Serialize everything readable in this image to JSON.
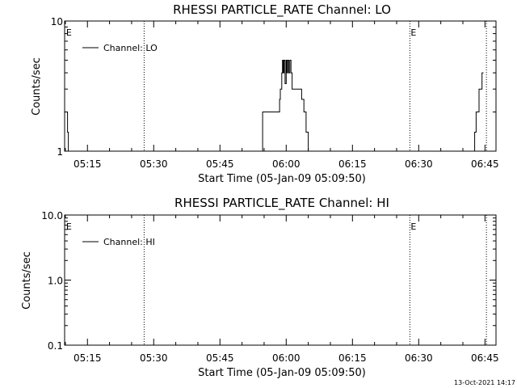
{
  "footer": {
    "timestamp": "13-Oct-2021 14:17"
  },
  "chart_data": [
    {
      "type": "line",
      "title": "RHESSI PARTICLE_RATE Channel: LO",
      "xlabel": "Start Time (05-Jan-09 05:09:50)",
      "ylabel": "Counts/sec",
      "yscale": "log",
      "ylim": [
        1,
        10
      ],
      "yticks": [
        1,
        10
      ],
      "ytick_labels": [
        "1",
        "10"
      ],
      "xlim": [
        "05:09:50",
        "06:47:30"
      ],
      "xticks": [
        "05:15",
        "05:30",
        "05:45",
        "06:00",
        "06:15",
        "06:30",
        "06:45"
      ],
      "xtick_labels": [
        "05:15",
        "05:30",
        "05:45",
        "06:00",
        "06:15",
        "06:30",
        "06:45"
      ],
      "legend": {
        "position": "top-left",
        "entries": [
          "Channel: LO"
        ]
      },
      "vlines": [
        "05:27:50",
        "06:28:00",
        "06:45:20"
      ],
      "flags": [
        {
          "text": "E",
          "time": "05:10:00"
        },
        {
          "text": "E",
          "time": "06:28:00"
        }
      ],
      "series": [
        {
          "name": "Channel: LO",
          "x": [
            "05:09:50",
            "05:10:20",
            "05:10:30",
            "05:10:40",
            "05:11:10",
            "05:54:30",
            "05:54:40",
            "05:55:00",
            "05:55:40",
            "05:55:50",
            "05:58:20",
            "05:58:30",
            "05:58:40",
            "05:59:00",
            "05:59:10",
            "05:59:20",
            "05:59:30",
            "05:59:45",
            "06:00:00",
            "06:00:10",
            "06:00:20",
            "06:00:35",
            "06:00:50",
            "06:01:05",
            "06:01:20",
            "06:01:40",
            "06:02:00",
            "06:02:30",
            "06:03:15",
            "06:03:30",
            "06:04:00",
            "06:04:30",
            "06:05:00",
            "06:42:30",
            "06:42:40",
            "06:43:00",
            "06:43:30",
            "06:43:40",
            "06:44:10",
            "06:44:20",
            "06:44:40"
          ],
          "y": [
            2.0,
            2.0,
            1.4,
            1.0,
            1.0,
            1.0,
            2.0,
            2.0,
            2.0,
            2.0,
            2.0,
            2.5,
            3.0,
            4.0,
            5.0,
            4.0,
            5.0,
            3.3,
            5.0,
            4.0,
            5.0,
            4.0,
            5.0,
            4.0,
            3.0,
            3.0,
            3.0,
            3.0,
            3.0,
            2.5,
            2.0,
            1.4,
            1.0,
            1.0,
            1.4,
            2.0,
            2.0,
            3.0,
            3.0,
            4.0,
            4.0
          ]
        }
      ]
    },
    {
      "type": "line",
      "title": "RHESSI PARTICLE_RATE Channel: HI",
      "xlabel": "Start Time (05-Jan-09 05:09:50)",
      "ylabel": "Counts/sec",
      "yscale": "log",
      "ylim": [
        0.1,
        10
      ],
      "yticks": [
        0.1,
        1.0,
        10.0
      ],
      "ytick_labels": [
        "0.1",
        "1.0",
        "10.0"
      ],
      "xlim": [
        "05:09:50",
        "06:47:30"
      ],
      "xticks": [
        "05:15",
        "05:30",
        "05:45",
        "06:00",
        "06:15",
        "06:30",
        "06:45"
      ],
      "xtick_labels": [
        "05:15",
        "05:30",
        "05:45",
        "06:00",
        "06:15",
        "06:30",
        "06:45"
      ],
      "legend": {
        "position": "top-left",
        "entries": [
          "Channel: HI"
        ]
      },
      "vlines": [
        "05:27:50",
        "06:28:00",
        "06:45:20"
      ],
      "flags": [
        {
          "text": "E",
          "time": "05:10:00"
        },
        {
          "text": "E",
          "time": "06:28:00"
        }
      ],
      "series": [
        {
          "name": "Channel: HI",
          "x": [],
          "y": []
        }
      ]
    }
  ]
}
